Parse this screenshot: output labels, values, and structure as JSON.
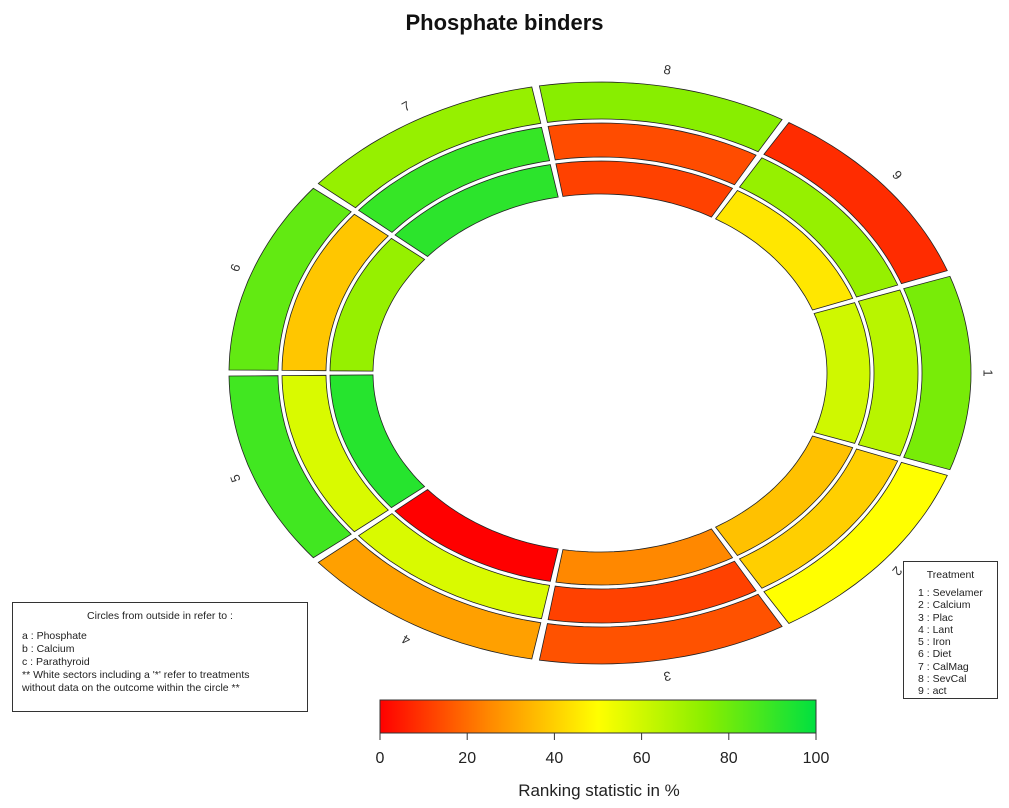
{
  "chart_data": {
    "type": "radial-heatmap",
    "title": "Phosphate binders",
    "xlabel": "Ranking statistic in %",
    "color_scale": {
      "min": 0,
      "max": 100,
      "low_color": "#ff0000",
      "mid_color": "#ffff00",
      "high_color": "#00e040",
      "ticks": [
        "0",
        "20",
        "40",
        "60",
        "80",
        "100"
      ]
    },
    "sector_labels": [
      "1",
      "2",
      "3",
      "4",
      "5",
      "6",
      "7",
      "8",
      "9"
    ],
    "rings": [
      {
        "name": "a",
        "values": [
          78,
          50,
          15,
          30,
          88,
          82,
          72,
          75,
          8
        ]
      },
      {
        "name": "b",
        "values": [
          65,
          40,
          12,
          58,
          58,
          38,
          90,
          14,
          72
        ]
      },
      {
        "name": "c",
        "values": [
          60,
          37,
          25,
          0,
          93,
          72,
          92,
          12,
          45
        ]
      }
    ],
    "ring_legend": {
      "header": "Circles from outside in refer to :",
      "lines": [
        "a : Phosphate",
        "b : Calcium",
        "c : Parathyroid",
        "** White sectors including a '*' refer to treatments",
        "without data on the outcome within the circle **"
      ]
    },
    "treatment_legend": {
      "header": "Treatment",
      "items": [
        "1 : Sevelamer",
        "2 : Calcium",
        "3 : Plac",
        "4 : Lant",
        "5 : Iron",
        "6 : Diet",
        "7 : CalMag",
        "8 : SevCal",
        "9 : act"
      ]
    }
  }
}
